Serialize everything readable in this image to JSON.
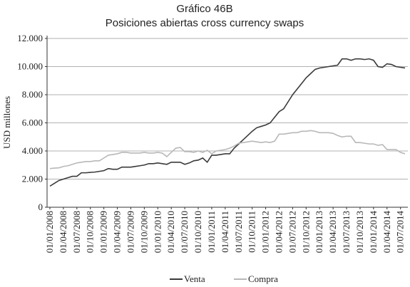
{
  "chart_data": {
    "type": "line",
    "title": "Gráfico 46B",
    "subtitle": "Posiciones abiertas cross currency swaps",
    "y_label": "USD millones",
    "categories": [
      "01/01/2008",
      null,
      null,
      "01/04/2008",
      null,
      null,
      "01/07/2008",
      null,
      null,
      "01/10/2008",
      null,
      null,
      "01/01/2009",
      null,
      null,
      "01/04/2009",
      null,
      null,
      "01/07/2009",
      null,
      null,
      "01/10/2009",
      null,
      null,
      "01/01/2010",
      null,
      null,
      "01/04/2010",
      null,
      null,
      "01/07/2010",
      null,
      null,
      "01/10/2010",
      null,
      null,
      "01/01/2011",
      null,
      null,
      "01/04/2011",
      null,
      null,
      "01/07/2011",
      null,
      null,
      "01/10/2011",
      null,
      null,
      "01/01/2012",
      null,
      null,
      "01/04/2012",
      null,
      null,
      "01/07/2012",
      null,
      null,
      "01/10/2012",
      null,
      null,
      "01/01/2013",
      null,
      null,
      "01/04/2013",
      null,
      null,
      "01/07/2013",
      null,
      null,
      "01/10/2013",
      null,
      null,
      "01/01/2014",
      null,
      null,
      "01/04/2014",
      null,
      null,
      "01/07/2014",
      null
    ],
    "series": [
      {
        "name": "Venta",
        "color": "#3a3a3a",
        "values": [
          1500,
          1700,
          1900,
          2000,
          2100,
          2200,
          2200,
          2450,
          2450,
          2480,
          2500,
          2550,
          2600,
          2750,
          2700,
          2700,
          2850,
          2850,
          2850,
          2900,
          2950,
          3000,
          3100,
          3100,
          3150,
          3100,
          3050,
          3200,
          3200,
          3200,
          3050,
          3150,
          3300,
          3350,
          3500,
          3200,
          3700,
          3700,
          3750,
          3800,
          3800,
          4200,
          4500,
          4800,
          5100,
          5400,
          5650,
          5750,
          5850,
          6000,
          6400,
          6800,
          7000,
          7500,
          8000,
          8400,
          8800,
          9200,
          9500,
          9800,
          9900,
          9950,
          10000,
          10050,
          10100,
          10550,
          10550,
          10450,
          10550,
          10550,
          10500,
          10550,
          10450,
          10000,
          9950,
          10200,
          10150,
          10000,
          9950,
          9900
        ]
      },
      {
        "name": "Compra",
        "color": "#b8b8b8",
        "values": [
          2750,
          2780,
          2800,
          2900,
          2950,
          3050,
          3150,
          3200,
          3250,
          3250,
          3300,
          3300,
          3500,
          3700,
          3750,
          3800,
          3900,
          3900,
          3850,
          3850,
          3850,
          3900,
          3850,
          3850,
          3900,
          3850,
          3600,
          3900,
          4200,
          4250,
          3950,
          3950,
          3900,
          4000,
          3900,
          4050,
          3800,
          4000,
          4050,
          4100,
          4200,
          4350,
          4550,
          4600,
          4650,
          4700,
          4650,
          4600,
          4650,
          4600,
          4700,
          5200,
          5200,
          5250,
          5300,
          5300,
          5400,
          5400,
          5450,
          5400,
          5300,
          5300,
          5300,
          5250,
          5100,
          5000,
          5050,
          5050,
          4600,
          4600,
          4550,
          4500,
          4500,
          4400,
          4450,
          4100,
          4100,
          4100,
          3900,
          3800
        ]
      }
    ],
    "ylim": [
      0,
      12000
    ],
    "yticks": [
      0,
      {
        "value": 2000,
        "label": "2.000"
      },
      {
        "value": 4000,
        "label": "4.000"
      },
      {
        "value": 6000,
        "label": "6.000"
      },
      {
        "value": 8000,
        "label": "8.000"
      },
      {
        "value": 10000,
        "label": "10.000"
      },
      {
        "value": 12000,
        "label": "12.000"
      }
    ],
    "grid": true
  }
}
